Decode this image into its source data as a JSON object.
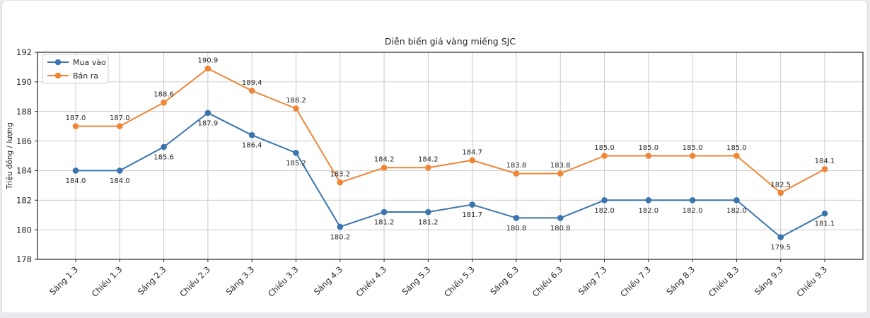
{
  "page": {
    "background": "#e9eaee",
    "card_background": "#ffffff",
    "card_border": "#d9dade"
  },
  "chart_data": {
    "type": "line",
    "title": "Diễn biến giá vàng miếng SJC",
    "xlabel": "",
    "ylabel": "Triệu đồng / lượng",
    "categories": [
      "Sáng 1.3",
      "Chiều 1.3",
      "Sáng 2.3",
      "Chiều 2.3",
      "Sáng 3.3",
      "Chiều 3.3",
      "Sáng 4.3",
      "Chiều 4.3",
      "Sáng 5.3",
      "Chiều 5.3",
      "Sáng 6.3",
      "Chiều 6.3",
      "Sáng 7.3",
      "Chiều 7.3",
      "Sáng 8.3",
      "Chiều 8.3",
      "Sáng 9.3",
      "Chiều 9.3"
    ],
    "series": [
      {
        "name": "Mua vào",
        "color": "#3b75af",
        "label_position": "below",
        "values": [
          184.0,
          184.0,
          185.6,
          187.9,
          186.4,
          185.2,
          180.2,
          181.2,
          181.2,
          181.7,
          180.8,
          180.8,
          182.0,
          182.0,
          182.0,
          182.0,
          179.5,
          181.1
        ]
      },
      {
        "name": "Bán ra",
        "color": "#ef8636",
        "label_position": "above",
        "values": [
          187.0,
          187.0,
          188.6,
          190.9,
          189.4,
          188.2,
          183.2,
          184.2,
          184.2,
          184.7,
          183.8,
          183.8,
          185.0,
          185.0,
          185.0,
          185.0,
          182.5,
          184.1
        ]
      }
    ],
    "ylim": [
      178,
      192
    ],
    "yticks": [
      178,
      180,
      182,
      184,
      186,
      188,
      190,
      192
    ],
    "grid": true,
    "legend_position": "upper-left",
    "colors": {
      "grid": "#c6c6c6",
      "spine": "#262626",
      "tick_text": "#262626",
      "annotation_text": "#262626",
      "legend_border": "#cccccc"
    }
  }
}
